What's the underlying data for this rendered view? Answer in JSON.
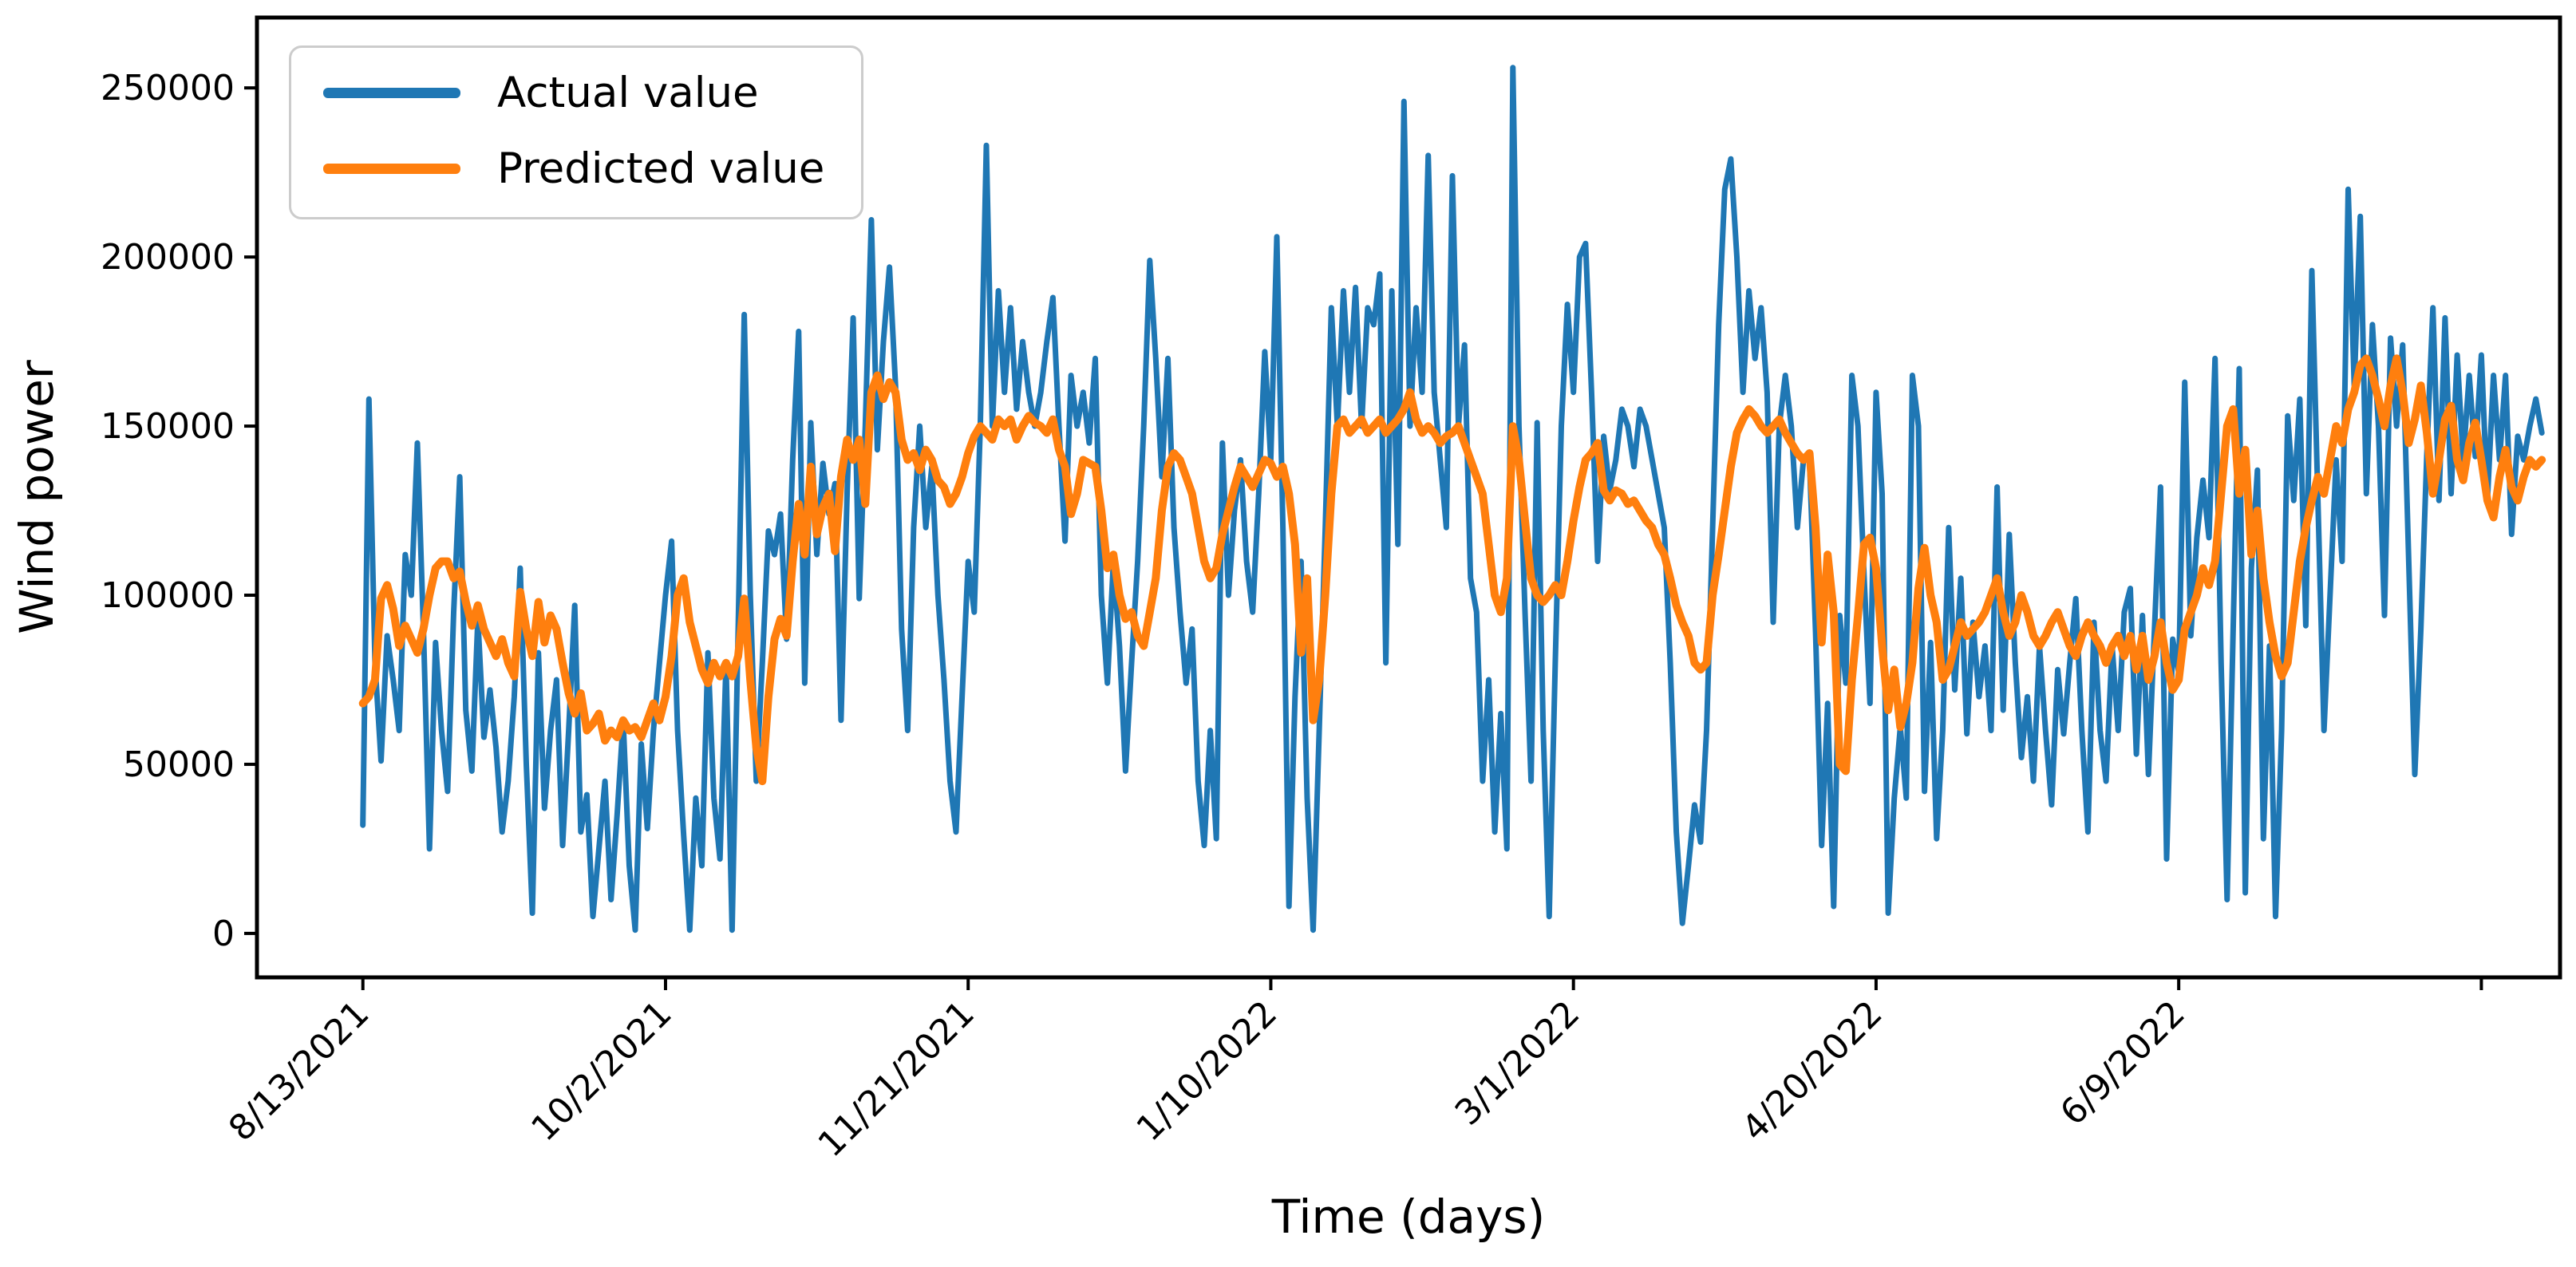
{
  "chart_data": {
    "type": "line",
    "title": "",
    "xlabel": "Time (days)",
    "ylabel": "Wind power",
    "x_unit": "daily values; day 0 = 8/13/2021, one point per day",
    "x_tick_days": [
      0,
      50,
      100,
      150,
      200,
      250,
      300,
      350
    ],
    "x_tick_labels": [
      "8/13/2021",
      "10/2/2021",
      "11/21/2021",
      "1/10/2022",
      "3/1/2022",
      "4/20/2022",
      "6/9/2022",
      ""
    ],
    "y_ticks": [
      0,
      50000,
      100000,
      150000,
      200000,
      250000
    ],
    "y_tick_labels": [
      "0",
      "50000",
      "100000",
      "150000",
      "200000",
      "250000"
    ],
    "ylim": [
      -13000,
      270800
    ],
    "xlim_days": [
      -17.5,
      363
    ],
    "grid": false,
    "legend": {
      "position": "upper left",
      "entries": [
        {
          "label": "Actual value",
          "color": "#1f77b4"
        },
        {
          "label": "Predicted value",
          "color": "#ff7f0e"
        }
      ]
    },
    "series": [
      {
        "name": "Actual value",
        "color": "#1f77b4",
        "line_width": 7,
        "values": [
          32000,
          158000,
          80000,
          51000,
          88000,
          75000,
          60000,
          112000,
          100000,
          145000,
          90000,
          25000,
          86000,
          60000,
          42000,
          95000,
          135000,
          66000,
          48000,
          93000,
          58000,
          72000,
          55000,
          30000,
          45000,
          70000,
          108000,
          50000,
          6000,
          83000,
          37000,
          60000,
          75000,
          26000,
          60000,
          97000,
          30000,
          41000,
          5000,
          25000,
          45000,
          10000,
          35000,
          63000,
          20000,
          1000,
          56000,
          31000,
          60000,
          80000,
          100000,
          116000,
          60000,
          29000,
          1000,
          40000,
          20000,
          83000,
          40000,
          22000,
          80000,
          1000,
          90000,
          183000,
          100000,
          45000,
          80000,
          119000,
          112000,
          124000,
          87000,
          140000,
          178000,
          74000,
          151000,
          112000,
          139000,
          124000,
          133000,
          63000,
          130000,
          182000,
          99000,
          150000,
          211000,
          143000,
          175000,
          197000,
          162000,
          90000,
          60000,
          120000,
          150000,
          120000,
          138000,
          100000,
          75000,
          45000,
          30000,
          70000,
          110000,
          95000,
          150000,
          233000,
          150000,
          190000,
          160000,
          185000,
          155000,
          175000,
          160000,
          150000,
          160000,
          175000,
          188000,
          150000,
          116000,
          165000,
          150000,
          160000,
          145000,
          170000,
          100000,
          74000,
          110000,
          85000,
          48000,
          80000,
          110000,
          150000,
          199000,
          170000,
          135000,
          170000,
          120000,
          95000,
          74000,
          90000,
          45000,
          26000,
          60000,
          28000,
          145000,
          100000,
          125000,
          140000,
          110000,
          95000,
          130000,
          172000,
          140000,
          206000,
          120000,
          8000,
          70000,
          110000,
          40000,
          1000,
          60000,
          120000,
          185000,
          150000,
          190000,
          160000,
          191000,
          150000,
          185000,
          180000,
          195000,
          80000,
          190000,
          115000,
          246000,
          150000,
          185000,
          160000,
          230000,
          160000,
          140000,
          120000,
          224000,
          150000,
          174000,
          105000,
          95000,
          45000,
          75000,
          30000,
          65000,
          25000,
          256000,
          150000,
          95000,
          45000,
          151000,
          60000,
          5000,
          80000,
          150000,
          186000,
          160000,
          200000,
          204000,
          160000,
          110000,
          147000,
          131000,
          140000,
          155000,
          150000,
          138000,
          155000,
          150000,
          140000,
          130000,
          120000,
          80000,
          30000,
          3000,
          20000,
          38000,
          27000,
          60000,
          120000,
          180000,
          220000,
          229000,
          200000,
          160000,
          190000,
          170000,
          185000,
          160000,
          92000,
          150000,
          165000,
          150000,
          120000,
          140000,
          140000,
          89000,
          26000,
          68000,
          8000,
          94000,
          74000,
          165000,
          150000,
          106000,
          68000,
          160000,
          130000,
          6000,
          40000,
          61000,
          40000,
          165000,
          150000,
          42000,
          86000,
          28000,
          60000,
          120000,
          72000,
          105000,
          59000,
          92000,
          70000,
          85000,
          60000,
          132000,
          66000,
          118000,
          80000,
          52000,
          70000,
          45000,
          85000,
          60000,
          38000,
          78000,
          59000,
          80000,
          99000,
          60000,
          30000,
          92000,
          60000,
          45000,
          85000,
          60000,
          95000,
          102000,
          53000,
          94000,
          47000,
          90000,
          132000,
          22000,
          87000,
          77000,
          163000,
          88000,
          117000,
          134000,
          117000,
          170000,
          80000,
          10000,
          90000,
          167000,
          12000,
          108000,
          137000,
          28000,
          85000,
          5000,
          60000,
          153000,
          128000,
          158000,
          91000,
          196000,
          128000,
          60000,
          100000,
          140000,
          110000,
          220000,
          162000,
          212000,
          130000,
          180000,
          150000,
          94000,
          176000,
          150000,
          174000,
          110000,
          47000,
          90000,
          142000,
          185000,
          128000,
          182000,
          130000,
          171000,
          140000,
          165000,
          141000,
          171000,
          128000,
          165000,
          140000,
          165000,
          118000,
          147000,
          140000,
          150000,
          158000,
          148000
        ]
      },
      {
        "name": "Predicted value",
        "color": "#ff7f0e",
        "line_width": 10,
        "values": [
          68000,
          70000,
          75000,
          99000,
          103000,
          96000,
          85000,
          91000,
          87000,
          83000,
          90000,
          100000,
          108000,
          110000,
          110000,
          105000,
          107000,
          98000,
          91000,
          97000,
          90000,
          86000,
          82000,
          87000,
          80000,
          76000,
          101000,
          90000,
          82000,
          98000,
          86000,
          94000,
          90000,
          80000,
          71000,
          65000,
          71000,
          60000,
          62000,
          65000,
          57000,
          60000,
          58000,
          63000,
          60000,
          61000,
          58000,
          63000,
          68000,
          63000,
          70000,
          82000,
          100000,
          105000,
          92000,
          85000,
          78000,
          74000,
          80000,
          76000,
          80000,
          76000,
          82000,
          99000,
          75000,
          55000,
          45000,
          70000,
          87000,
          93000,
          88000,
          110000,
          127000,
          112000,
          138000,
          118000,
          126000,
          130000,
          113000,
          135000,
          146000,
          140000,
          146000,
          127000,
          160000,
          165000,
          158000,
          163000,
          160000,
          146000,
          140000,
          142000,
          137000,
          143000,
          140000,
          134000,
          132000,
          127000,
          130000,
          135000,
          142000,
          147000,
          150000,
          148000,
          146000,
          152000,
          150000,
          152000,
          146000,
          150000,
          153000,
          151000,
          150000,
          148000,
          152000,
          143000,
          138000,
          124000,
          130000,
          140000,
          139000,
          138000,
          125000,
          108000,
          112000,
          100000,
          93000,
          95000,
          88000,
          85000,
          95000,
          105000,
          125000,
          138000,
          142000,
          140000,
          135000,
          130000,
          120000,
          110000,
          105000,
          108000,
          118000,
          125000,
          132000,
          138000,
          135000,
          132000,
          136000,
          140000,
          139000,
          135000,
          138000,
          130000,
          115000,
          83000,
          105000,
          63000,
          75000,
          100000,
          130000,
          150000,
          152000,
          148000,
          150000,
          152000,
          148000,
          150000,
          152000,
          148000,
          150000,
          152000,
          155000,
          160000,
          152000,
          148000,
          150000,
          148000,
          145000,
          147000,
          148000,
          150000,
          145000,
          140000,
          135000,
          130000,
          115000,
          100000,
          95000,
          105000,
          150000,
          140000,
          122000,
          105000,
          100000,
          98000,
          100000,
          103000,
          100000,
          110000,
          122000,
          132000,
          140000,
          142000,
          145000,
          131000,
          128000,
          131000,
          130000,
          127000,
          128000,
          125000,
          122000,
          120000,
          115000,
          112000,
          105000,
          97000,
          92000,
          88000,
          80000,
          78000,
          80000,
          100000,
          112000,
          125000,
          138000,
          148000,
          152000,
          155000,
          153000,
          150000,
          148000,
          150000,
          152000,
          148000,
          145000,
          142000,
          140000,
          142000,
          120000,
          86000,
          112000,
          95000,
          50000,
          48000,
          75000,
          94000,
          115000,
          117000,
          108000,
          85000,
          66000,
          78000,
          61000,
          68000,
          80000,
          102000,
          114000,
          100000,
          92000,
          75000,
          78000,
          85000,
          92000,
          88000,
          90000,
          92000,
          95000,
          100000,
          105000,
          95000,
          88000,
          92000,
          100000,
          95000,
          88000,
          85000,
          88000,
          92000,
          95000,
          90000,
          85000,
          82000,
          88000,
          92000,
          88000,
          85000,
          80000,
          85000,
          88000,
          82000,
          88000,
          78000,
          88000,
          75000,
          82000,
          92000,
          80000,
          72000,
          75000,
          90000,
          95000,
          100000,
          108000,
          103000,
          110000,
          130000,
          150000,
          155000,
          130000,
          143000,
          112000,
          125000,
          105000,
          92000,
          82000,
          76000,
          80000,
          95000,
          110000,
          120000,
          128000,
          135000,
          130000,
          140000,
          150000,
          145000,
          155000,
          160000,
          168000,
          170000,
          165000,
          158000,
          150000,
          162000,
          170000,
          160000,
          145000,
          152000,
          162000,
          148000,
          130000,
          140000,
          152000,
          156000,
          140000,
          134000,
          145000,
          151000,
          140000,
          128000,
          123000,
          135000,
          143000,
          132000,
          128000,
          135000,
          140000,
          138000,
          140000
        ]
      }
    ]
  },
  "colors": {
    "actual": "#1f77b4",
    "predicted": "#ff7f0e",
    "axis": "#000000",
    "legend_border": "#cccccc",
    "background": "#ffffff"
  }
}
